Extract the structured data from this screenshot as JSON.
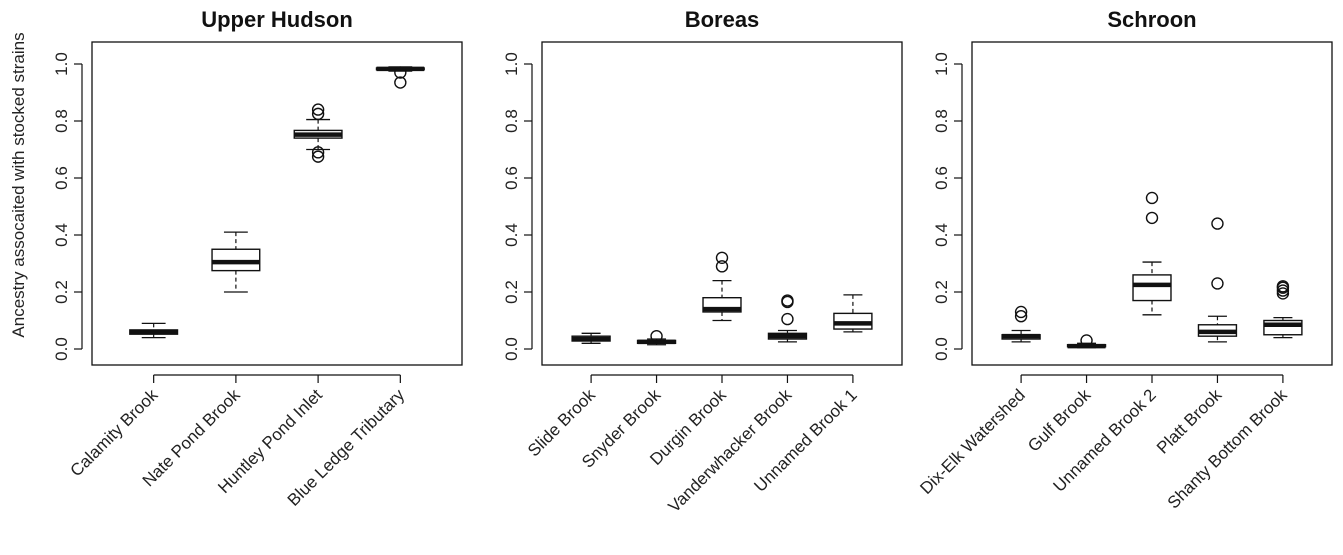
{
  "figure": {
    "ylabel": "Ancestry assocaited with stocked strains"
  },
  "chart_data": [
    {
      "type": "box",
      "title": "Upper Hudson",
      "ylim": [
        0,
        1
      ],
      "yticks": [
        "0.0",
        "0.2",
        "0.4",
        "0.6",
        "0.8",
        "1.0"
      ],
      "categories": [
        "Calamity Brook",
        "Nate Pond Brook",
        "Huntley Pond Inlet",
        "Blue Ledge Tributary"
      ],
      "boxes": [
        {
          "min": 0.04,
          "q1": 0.052,
          "median": 0.06,
          "q3": 0.067,
          "max": 0.09,
          "outliers": []
        },
        {
          "min": 0.2,
          "q1": 0.275,
          "median": 0.305,
          "q3": 0.35,
          "max": 0.41,
          "outliers": []
        },
        {
          "min": 0.7,
          "q1": 0.74,
          "median": 0.752,
          "q3": 0.767,
          "max": 0.805,
          "outliers": [
            0.84,
            0.825,
            0.69,
            0.675
          ]
        },
        {
          "min": 0.975,
          "q1": 0.98,
          "median": 0.983,
          "q3": 0.986,
          "max": 0.99,
          "outliers": [
            0.97,
            0.935
          ]
        }
      ]
    },
    {
      "type": "box",
      "title": "Boreas",
      "ylim": [
        0,
        1
      ],
      "yticks": [
        "0.0",
        "0.2",
        "0.4",
        "0.6",
        "0.8",
        "1.0"
      ],
      "categories": [
        "Slide Brook",
        "Snyder Brook",
        "Durgin Brook",
        "Vanderwhacker Brook",
        "Unnamed Brook 1"
      ],
      "boxes": [
        {
          "min": 0.02,
          "q1": 0.028,
          "median": 0.035,
          "q3": 0.045,
          "max": 0.055,
          "outliers": []
        },
        {
          "min": 0.015,
          "q1": 0.02,
          "median": 0.025,
          "q3": 0.03,
          "max": 0.035,
          "outliers": [
            0.045
          ]
        },
        {
          "min": 0.1,
          "q1": 0.13,
          "median": 0.14,
          "q3": 0.18,
          "max": 0.24,
          "outliers": [
            0.29,
            0.32
          ]
        },
        {
          "min": 0.025,
          "q1": 0.035,
          "median": 0.045,
          "q3": 0.055,
          "max": 0.065,
          "outliers": [
            0.105,
            0.165,
            0.17
          ]
        },
        {
          "min": 0.06,
          "q1": 0.07,
          "median": 0.09,
          "q3": 0.125,
          "max": 0.19,
          "outliers": []
        }
      ]
    },
    {
      "type": "box",
      "title": "Schroon",
      "ylim": [
        0,
        1
      ],
      "yticks": [
        "0.0",
        "0.2",
        "0.4",
        "0.6",
        "0.8",
        "1.0"
      ],
      "categories": [
        "Dix-Elk Watershed",
        "Gulf Brook",
        "Unnamed Brook 2",
        "Platt Brook",
        "Shanty Bottom Brook"
      ],
      "boxes": [
        {
          "min": 0.025,
          "q1": 0.035,
          "median": 0.045,
          "q3": 0.05,
          "max": 0.065,
          "outliers": [
            0.115,
            0.13
          ]
        },
        {
          "min": 0.005,
          "q1": 0.008,
          "median": 0.01,
          "q3": 0.015,
          "max": 0.02,
          "outliers": [
            0.03
          ]
        },
        {
          "min": 0.12,
          "q1": 0.17,
          "median": 0.225,
          "q3": 0.26,
          "max": 0.305,
          "outliers": [
            0.46,
            0.53
          ]
        },
        {
          "min": 0.025,
          "q1": 0.045,
          "median": 0.06,
          "q3": 0.085,
          "max": 0.115,
          "outliers": [
            0.23,
            0.44
          ]
        },
        {
          "min": 0.04,
          "q1": 0.05,
          "median": 0.085,
          "q3": 0.1,
          "max": 0.11,
          "outliers": [
            0.195,
            0.205,
            0.215,
            0.22
          ]
        }
      ]
    }
  ]
}
